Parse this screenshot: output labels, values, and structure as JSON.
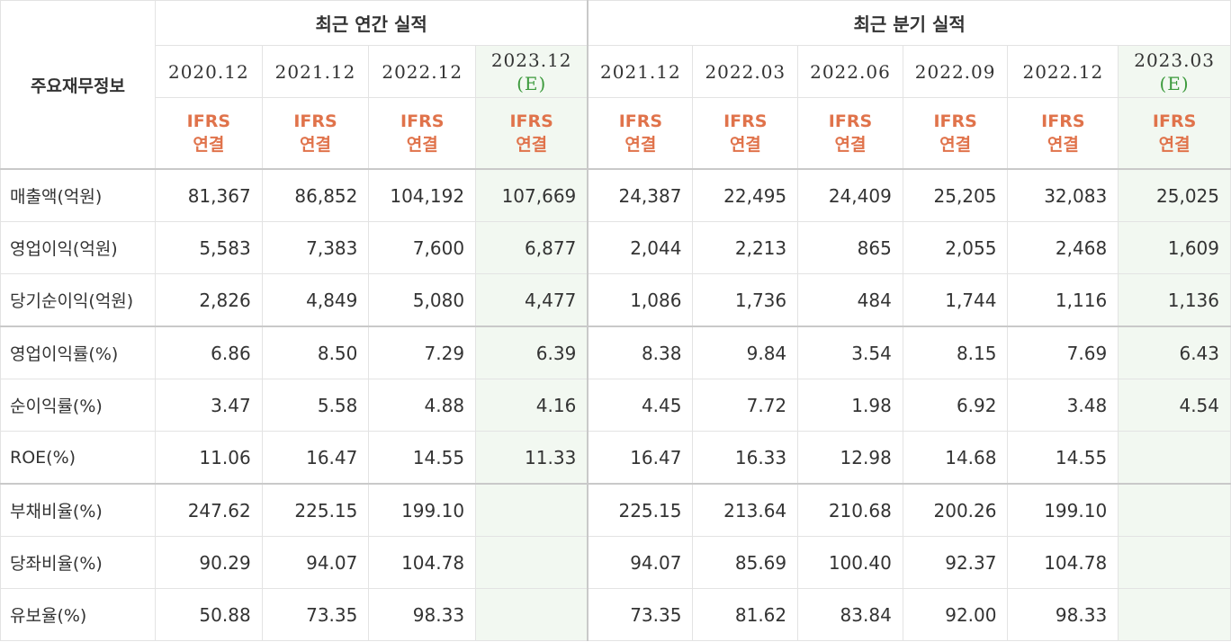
{
  "table": {
    "corner_label": "주요재무정보",
    "groups": [
      {
        "label": "최근 연간 실적"
      },
      {
        "label": "최근 분기 실적"
      }
    ],
    "periods": [
      {
        "date": "2020.12",
        "est": ""
      },
      {
        "date": "2021.12",
        "est": ""
      },
      {
        "date": "2022.12",
        "est": ""
      },
      {
        "date": "2023.12",
        "est": "(E)"
      },
      {
        "date": "2021.12",
        "est": ""
      },
      {
        "date": "2022.03",
        "est": ""
      },
      {
        "date": "2022.06",
        "est": ""
      },
      {
        "date": "2022.09",
        "est": ""
      },
      {
        "date": "2022.12",
        "est": ""
      },
      {
        "date": "2023.03",
        "est": "(E)"
      }
    ],
    "ifrs_line1": "IFRS",
    "ifrs_line2": "연결",
    "rows": [
      {
        "label": "매출액(억원)",
        "values": [
          "81,367",
          "86,852",
          "104,192",
          "107,669",
          "24,387",
          "22,495",
          "24,409",
          "25,205",
          "32,083",
          "25,025"
        ]
      },
      {
        "label": "영업이익(억원)",
        "values": [
          "5,583",
          "7,383",
          "7,600",
          "6,877",
          "2,044",
          "2,213",
          "865",
          "2,055",
          "2,468",
          "1,609"
        ]
      },
      {
        "label": "당기순이익(억원)",
        "values": [
          "2,826",
          "4,849",
          "5,080",
          "4,477",
          "1,086",
          "1,736",
          "484",
          "1,744",
          "1,116",
          "1,136"
        ]
      },
      {
        "label": "영업이익률(%)",
        "values": [
          "6.86",
          "8.50",
          "7.29",
          "6.39",
          "8.38",
          "9.84",
          "3.54",
          "8.15",
          "7.69",
          "6.43"
        ]
      },
      {
        "label": "순이익률(%)",
        "values": [
          "3.47",
          "5.58",
          "4.88",
          "4.16",
          "4.45",
          "7.72",
          "1.98",
          "6.92",
          "3.48",
          "4.54"
        ]
      },
      {
        "label": "ROE(%)",
        "values": [
          "11.06",
          "16.47",
          "14.55",
          "11.33",
          "16.47",
          "16.33",
          "12.98",
          "14.68",
          "14.55",
          ""
        ]
      },
      {
        "label": "부채비율(%)",
        "values": [
          "247.62",
          "225.15",
          "199.10",
          "",
          "225.15",
          "213.64",
          "210.68",
          "200.26",
          "199.10",
          ""
        ]
      },
      {
        "label": "당좌비율(%)",
        "values": [
          "90.29",
          "94.07",
          "104.78",
          "",
          "94.07",
          "85.69",
          "100.40",
          "92.37",
          "104.78",
          ""
        ]
      },
      {
        "label": "유보율(%)",
        "values": [
          "50.88",
          "73.35",
          "98.33",
          "",
          "73.35",
          "81.62",
          "83.84",
          "92.00",
          "98.33",
          ""
        ]
      }
    ],
    "colors": {
      "ifrs_text": "#e0734b",
      "estimate_text": "#3c9a3c",
      "estimate_column_bg": "#f2f8f1",
      "grid_line": "#e3e3e3",
      "section_line": "#c9c9c9"
    }
  }
}
